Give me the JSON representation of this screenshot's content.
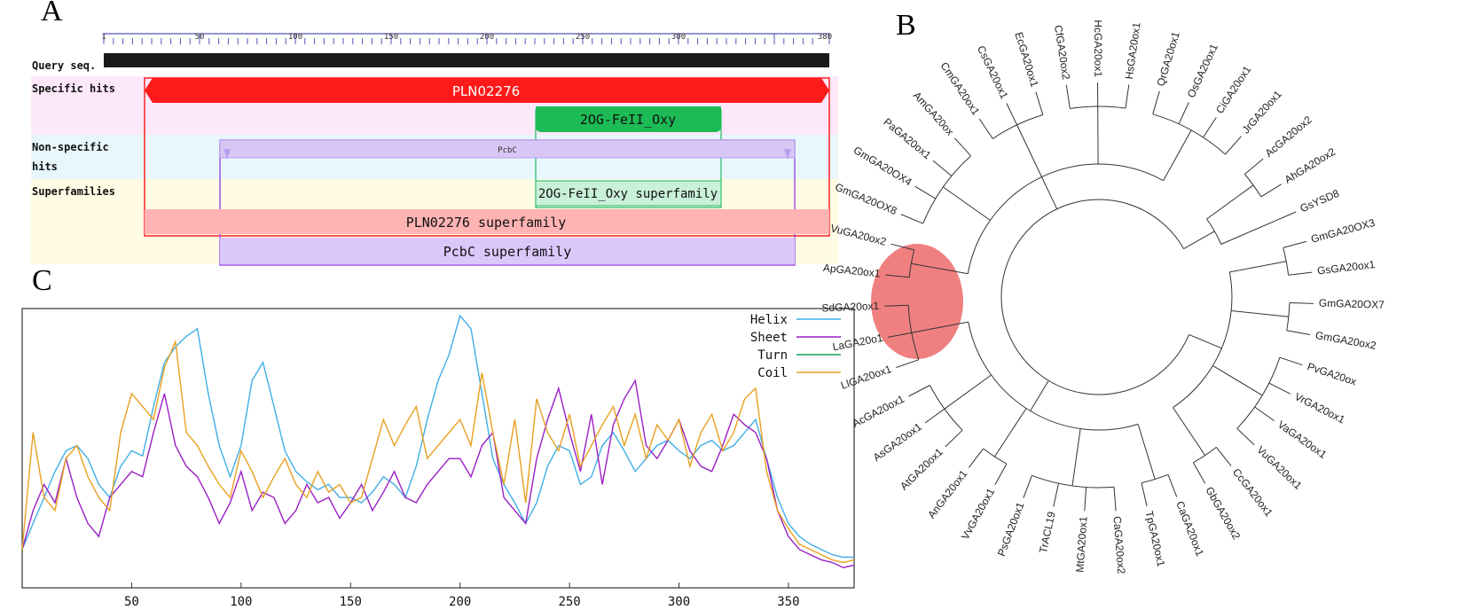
{
  "panels": {
    "a": "A",
    "b": "B",
    "c": "C"
  },
  "panel_a": {
    "ruler_ticks": [
      "1",
      "50",
      "100",
      "150",
      "200",
      "250",
      "300",
      "380"
    ],
    "row_labels": {
      "query": "Query seq.",
      "specific": "Specific hits",
      "nonspecific_1": "Non-specific",
      "nonspecific_2": "hits",
      "superfamilies": "Superfamilies"
    },
    "domains": {
      "pln": "PLN02276",
      "oxy": "2OG-FeII_Oxy",
      "pcbc": "PcbC",
      "oxy_super": "2OG-FeII_Oxy superfamily",
      "pln_super": "PLN02276 superfamily",
      "pcbc_super": "PcbC superfamily"
    },
    "colors": {
      "pln": "#ff1a1a",
      "oxy": "#1dbb55",
      "pcbc": "#d8c6f4",
      "query": "#1a1a1a"
    }
  },
  "panel_b": {
    "leaves": [
      "GmGA20OX3",
      "GsGA20ox1",
      "GmGA20OX7",
      "GmGA20ox2",
      "PvGA20ox",
      "VrGA20ox1",
      "VaGA20ox1",
      "VuGA20ox1",
      "CcGA20ox1",
      "GbGA20ox2",
      "CaGA20ox1",
      "TpGA20ox1",
      "CaGA20ox2",
      "MtGA20ox1",
      "TrACL19",
      "PsGA20ox1",
      "VvGA20ox1",
      "AnGA20ox1",
      "AtGA20ox1",
      "AsGA20ox1",
      "AcGA20ox1",
      "LlGA20ox1",
      "LaGA20o1",
      "SdGA20ox1",
      "ApGA20ox1",
      "VuGA20ox2",
      "GmGA20OX8",
      "GmGA20OX4",
      "PaGA20ox1",
      "AmGA20ox",
      "CmGA20ox1",
      "CsGA20ox1",
      "EcGA20ox1",
      "CfGA20ox2",
      "HcGA20ox1",
      "HsGA20ox1",
      "QrGA20ox1",
      "OsGA20ox1",
      "CiGA20ox1",
      "JrGA20ox1",
      "AcGA20ox2",
      "AhGA20ox2",
      "GsYSD8"
    ],
    "highlight_color": "#f08080"
  },
  "chart_data": {
    "type": "line",
    "title": "",
    "xlabel": "",
    "ylabel": "",
    "xlim": [
      0,
      380
    ],
    "ylim": [
      0,
      1
    ],
    "x_ticks": [
      50,
      100,
      150,
      200,
      250,
      300,
      350
    ],
    "legend": "top-right",
    "series": [
      {
        "name": "Helix",
        "color": "#40aee6",
        "x": [
          0,
          5,
          10,
          15,
          20,
          25,
          30,
          35,
          40,
          45,
          50,
          55,
          60,
          65,
          70,
          75,
          80,
          85,
          90,
          95,
          100,
          105,
          110,
          115,
          120,
          125,
          130,
          135,
          140,
          145,
          150,
          155,
          160,
          165,
          170,
          175,
          180,
          185,
          190,
          195,
          200,
          205,
          210,
          215,
          220,
          225,
          230,
          235,
          240,
          245,
          250,
          255,
          260,
          265,
          270,
          275,
          280,
          285,
          290,
          295,
          300,
          305,
          310,
          315,
          320,
          325,
          330,
          335,
          340,
          345,
          350,
          355,
          360,
          365,
          370,
          375,
          380
        ],
        "values": [
          0.1,
          0.2,
          0.3,
          0.4,
          0.48,
          0.5,
          0.45,
          0.35,
          0.3,
          0.42,
          0.48,
          0.46,
          0.65,
          0.82,
          0.88,
          0.92,
          0.95,
          0.7,
          0.5,
          0.38,
          0.5,
          0.75,
          0.82,
          0.65,
          0.48,
          0.4,
          0.36,
          0.33,
          0.35,
          0.3,
          0.3,
          0.28,
          0.32,
          0.38,
          0.35,
          0.3,
          0.42,
          0.6,
          0.75,
          0.85,
          1.0,
          0.95,
          0.7,
          0.45,
          0.35,
          0.28,
          0.2,
          0.28,
          0.42,
          0.5,
          0.48,
          0.35,
          0.38,
          0.5,
          0.55,
          0.48,
          0.4,
          0.45,
          0.5,
          0.52,
          0.48,
          0.45,
          0.5,
          0.52,
          0.48,
          0.5,
          0.55,
          0.6,
          0.45,
          0.3,
          0.2,
          0.15,
          0.12,
          0.1,
          0.08,
          0.07,
          0.07
        ]
      },
      {
        "name": "Sheet",
        "color": "#9a1fc4",
        "x": [
          0,
          5,
          10,
          15,
          20,
          25,
          30,
          35,
          40,
          45,
          50,
          55,
          60,
          65,
          70,
          75,
          80,
          85,
          90,
          95,
          100,
          105,
          110,
          115,
          120,
          125,
          130,
          135,
          140,
          145,
          150,
          155,
          160,
          165,
          170,
          175,
          180,
          185,
          190,
          195,
          200,
          205,
          210,
          215,
          220,
          225,
          230,
          235,
          240,
          245,
          250,
          255,
          260,
          265,
          270,
          275,
          280,
          285,
          290,
          295,
          300,
          305,
          310,
          315,
          320,
          325,
          330,
          335,
          340,
          345,
          350,
          355,
          360,
          365,
          370,
          375,
          380
        ],
        "values": [
          0.1,
          0.25,
          0.35,
          0.28,
          0.45,
          0.3,
          0.2,
          0.15,
          0.3,
          0.35,
          0.4,
          0.38,
          0.55,
          0.7,
          0.5,
          0.42,
          0.38,
          0.3,
          0.2,
          0.28,
          0.4,
          0.25,
          0.32,
          0.3,
          0.2,
          0.25,
          0.35,
          0.28,
          0.3,
          0.22,
          0.28,
          0.35,
          0.25,
          0.32,
          0.4,
          0.3,
          0.28,
          0.35,
          0.4,
          0.45,
          0.45,
          0.38,
          0.5,
          0.55,
          0.3,
          0.25,
          0.2,
          0.45,
          0.6,
          0.72,
          0.55,
          0.4,
          0.62,
          0.35,
          0.58,
          0.68,
          0.75,
          0.5,
          0.45,
          0.52,
          0.6,
          0.48,
          0.42,
          0.4,
          0.5,
          0.62,
          0.58,
          0.55,
          0.45,
          0.25,
          0.15,
          0.1,
          0.08,
          0.06,
          0.05,
          0.03,
          0.04
        ]
      },
      {
        "name": "Turn",
        "color": "#16a35a",
        "x": [],
        "values": []
      },
      {
        "name": "Coil",
        "color": "#e8a020",
        "x": [
          0,
          5,
          10,
          15,
          20,
          25,
          30,
          35,
          40,
          45,
          50,
          55,
          60,
          65,
          70,
          75,
          80,
          85,
          90,
          95,
          100,
          105,
          110,
          115,
          120,
          125,
          130,
          135,
          140,
          145,
          150,
          155,
          160,
          165,
          170,
          175,
          180,
          185,
          190,
          195,
          200,
          205,
          210,
          215,
          220,
          225,
          230,
          235,
          240,
          245,
          250,
          255,
          260,
          265,
          270,
          275,
          280,
          285,
          290,
          295,
          300,
          305,
          310,
          315,
          320,
          325,
          330,
          335,
          340,
          345,
          350,
          355,
          360,
          365,
          370,
          375,
          380
        ],
        "values": [
          0.1,
          0.55,
          0.3,
          0.25,
          0.45,
          0.5,
          0.38,
          0.3,
          0.25,
          0.55,
          0.7,
          0.65,
          0.6,
          0.8,
          0.9,
          0.55,
          0.5,
          0.42,
          0.35,
          0.3,
          0.48,
          0.4,
          0.3,
          0.38,
          0.45,
          0.35,
          0.3,
          0.4,
          0.32,
          0.35,
          0.28,
          0.3,
          0.45,
          0.6,
          0.5,
          0.58,
          0.65,
          0.45,
          0.5,
          0.55,
          0.6,
          0.5,
          0.78,
          0.55,
          0.35,
          0.6,
          0.28,
          0.68,
          0.55,
          0.48,
          0.62,
          0.42,
          0.5,
          0.58,
          0.65,
          0.5,
          0.62,
          0.45,
          0.58,
          0.52,
          0.6,
          0.42,
          0.55,
          0.62,
          0.48,
          0.55,
          0.68,
          0.72,
          0.4,
          0.25,
          0.18,
          0.12,
          0.1,
          0.08,
          0.06,
          0.05,
          0.06
        ]
      }
    ]
  }
}
